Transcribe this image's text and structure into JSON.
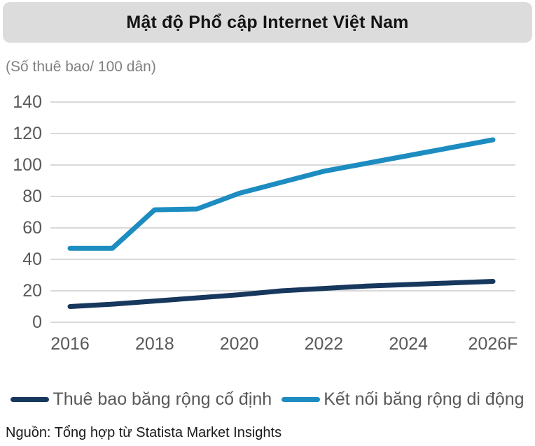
{
  "header": {
    "title": "Mật độ Phổ cập Internet Việt Nam"
  },
  "subtitle": "(Số thuê bao/ 100 dân)",
  "source": "Nguồn: Tổng hợp từ Statista Market Insights",
  "colors": {
    "fixed": "#17375d",
    "mobile": "#1d8cc0",
    "gridline": "#d9d9d9",
    "axis_text": "#595959",
    "title_bg": "#dcdcdc"
  },
  "chart_data": {
    "type": "line",
    "title": "Mật độ Phổ cập Internet Việt Nam",
    "ylabel": "(Số thuê bao/ 100 dân)",
    "x": [
      2016,
      2017,
      2018,
      2019,
      2020,
      2021,
      2022,
      2023,
      2024,
      2025,
      2026
    ],
    "x_tick_years": [
      2016,
      2018,
      2020,
      2022,
      2024,
      2026
    ],
    "x_tick_labels": [
      "2016",
      "2018",
      "2020",
      "2022",
      "2024",
      "2026F"
    ],
    "y_ticks": [
      0,
      20,
      40,
      60,
      80,
      100,
      120,
      140
    ],
    "ylim": [
      0,
      140
    ],
    "grid": true,
    "legend_position": "bottom",
    "series": [
      {
        "name": "Thuê bao băng rộng cố định",
        "color_key": "fixed",
        "values": [
          10,
          11.5,
          13.5,
          15.5,
          17.5,
          20,
          21.5,
          23,
          24,
          25,
          26
        ]
      },
      {
        "name": "Kết nối băng rộng di động",
        "color_key": "mobile",
        "values": [
          47,
          47,
          71.5,
          72,
          82,
          89,
          96,
          101,
          106,
          111,
          116
        ]
      }
    ]
  }
}
